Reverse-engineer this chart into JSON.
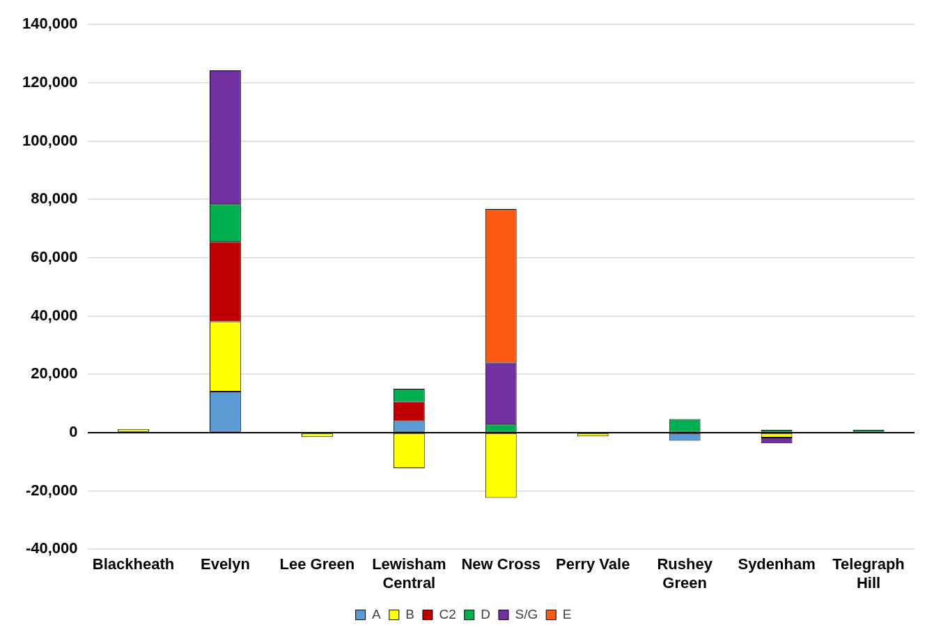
{
  "chart_data": {
    "type": "bar",
    "stacked": true,
    "categories": [
      "Blackheath",
      "Evelyn",
      "Lee Green",
      "Lewisham Central",
      "New Cross",
      "Perry Vale",
      "Rushey Green",
      "Sydenham",
      "Telegraph Hill"
    ],
    "series": [
      {
        "name": "A",
        "color": "#5b9bd5",
        "values": [
          null,
          14100,
          null,
          3900,
          null,
          null,
          -2800,
          null,
          null
        ]
      },
      {
        "name": "B",
        "color": "#ffff00",
        "values": [
          1200,
          24000,
          -1500,
          -12200,
          -22400,
          -1300,
          null,
          -1700,
          null
        ]
      },
      {
        "name": "C2",
        "color": "#c00000",
        "values": [
          null,
          27300,
          null,
          6700,
          null,
          null,
          null,
          null,
          null
        ]
      },
      {
        "name": "D",
        "color": "#00b050",
        "values": [
          null,
          12900,
          null,
          4400,
          2800,
          null,
          4600,
          900,
          900
        ]
      },
      {
        "name": "S/G",
        "color": "#7030a0",
        "values": [
          null,
          46000,
          null,
          null,
          21200,
          null,
          null,
          -2000,
          null
        ]
      },
      {
        "name": "E",
        "color": "#fa5a14",
        "values": [
          null,
          null,
          null,
          null,
          52700,
          null,
          null,
          null,
          null
        ]
      }
    ],
    "ylim": [
      -40000,
      140000
    ],
    "yticks": [
      {
        "value": -40000,
        "label": "-40,000"
      },
      {
        "value": -20000,
        "label": "-20,000"
      },
      0,
      {
        "value": 20000,
        "label": "20,000"
      },
      {
        "value": 40000,
        "label": "40,000"
      },
      {
        "value": 60000,
        "label": "60,000"
      },
      {
        "value": 80000,
        "label": "80,000"
      },
      {
        "value": 100000,
        "label": "100,000"
      },
      {
        "value": 120000,
        "label": "120,000"
      },
      {
        "value": 140000,
        "label": "140,000"
      }
    ],
    "grid": "y",
    "legend": "bottom"
  }
}
